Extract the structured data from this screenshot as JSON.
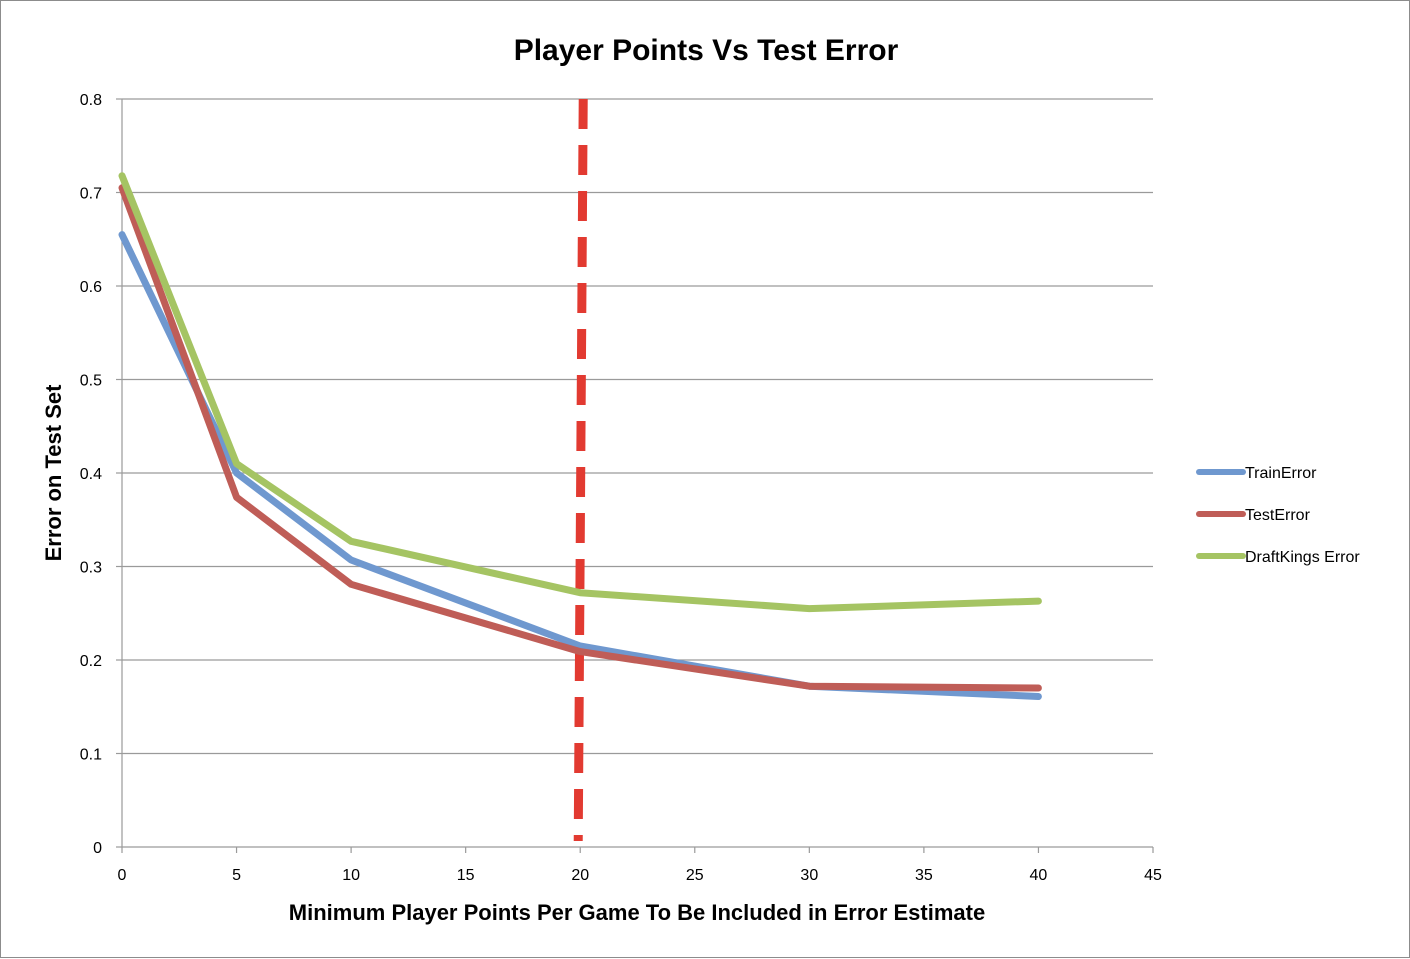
{
  "chart_data": {
    "type": "line",
    "title": "Player Points Vs Test Error",
    "xlabel": "Minimum Player Points Per Game To Be Included in Error Estimate",
    "ylabel": "Error on Test Set",
    "xlim": [
      0,
      45
    ],
    "ylim": [
      0,
      0.8
    ],
    "x_ticks": [
      0,
      5,
      10,
      15,
      20,
      25,
      30,
      35,
      40,
      45
    ],
    "y_ticks": [
      0,
      0.1,
      0.2,
      0.3,
      0.4,
      0.5,
      0.6,
      0.7,
      0.8
    ],
    "grid": "horizontal",
    "legend_position": "right",
    "x": [
      0,
      5,
      10,
      20,
      30,
      40
    ],
    "series": [
      {
        "name": "TrainError",
        "color": "#6f98cf",
        "values": [
          0.655,
          0.4,
          0.307,
          0.215,
          0.172,
          0.161
        ]
      },
      {
        "name": "TestError",
        "color": "#bf5d57",
        "values": [
          0.705,
          0.374,
          0.281,
          0.209,
          0.172,
          0.17
        ]
      },
      {
        "name": "DraftKings Error",
        "color": "#a5c463",
        "values": [
          0.718,
          0.41,
          0.327,
          0.272,
          0.255,
          0.263
        ]
      }
    ],
    "reference_line": {
      "x": 20,
      "color": "#e23a31",
      "style": "dashed"
    }
  }
}
